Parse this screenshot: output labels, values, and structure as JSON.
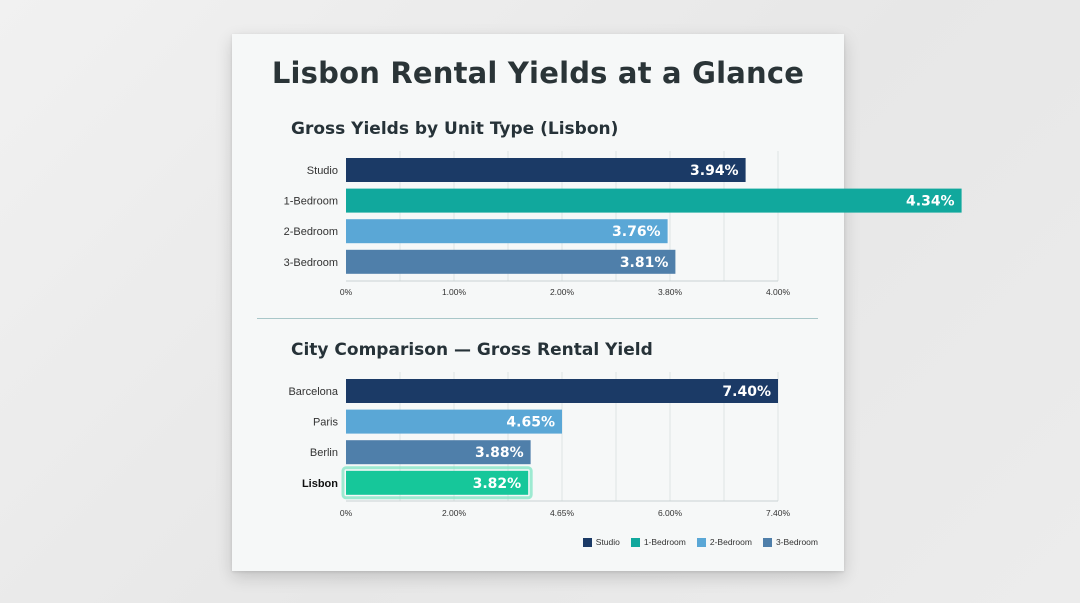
{
  "page": {
    "title": "Lisbon Rental Yields at a Glance"
  },
  "legend": [
    {
      "label": "Studio",
      "color": "#1b3a66"
    },
    {
      "label": "1-Bedroom",
      "color": "#11a89d"
    },
    {
      "label": "2-Bedroom",
      "color": "#5aa7d6"
    },
    {
      "label": "3-Bedroom",
      "color": "#4f7faa"
    }
  ],
  "chart_data": [
    {
      "type": "bar",
      "orientation": "horizontal",
      "title": "Gross Yields by Unit Type (Lisbon)",
      "categories": [
        "Studio",
        "1-Bedroom",
        "2-Bedroom",
        "3-Bedroom"
      ],
      "values": [
        3.94,
        4.34,
        3.76,
        3.81
      ],
      "value_labels": [
        "3.94%",
        "4.34%",
        "3.76%",
        "3.81%"
      ],
      "colors": [
        "#1b3a66",
        "#11a89d",
        "#5aa7d6",
        "#4f7faa"
      ],
      "xticks": [
        0,
        1.0,
        2.0,
        3.8,
        4.0
      ],
      "xtick_labels": [
        "0%",
        "1.00%",
        "2.00%",
        "3.80%",
        "4.00%"
      ],
      "grid": true
    },
    {
      "type": "bar",
      "orientation": "horizontal",
      "title": "City Comparison — Gross Rental Yield",
      "categories": [
        "Barcelona",
        "Paris",
        "Berlin",
        "Lisbon"
      ],
      "values": [
        7.4,
        4.65,
        3.88,
        3.82
      ],
      "value_labels": [
        "7.40%",
        "4.65%",
        "3.88%",
        "3.82%"
      ],
      "colors": [
        "#1b3a66",
        "#5aa7d6",
        "#4f7faa",
        "#16c79a"
      ],
      "highlight": "Lisbon",
      "xticks": [
        0,
        2.0,
        4.65,
        6.0,
        7.4
      ],
      "xtick_labels": [
        "0%",
        "2.00%",
        "4.65%",
        "6.00%",
        "7.40%"
      ],
      "grid": true
    }
  ]
}
